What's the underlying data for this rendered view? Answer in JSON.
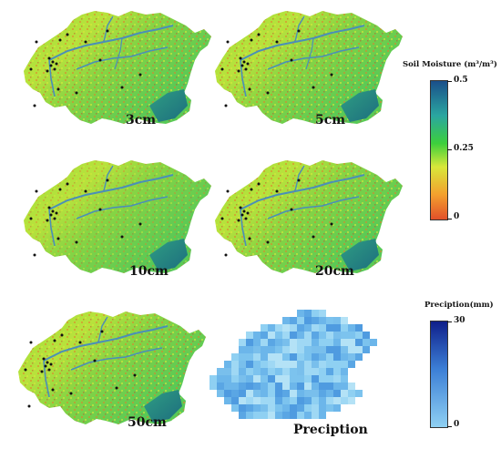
{
  "panels": [
    {
      "label": "3cm"
    },
    {
      "label": "5cm"
    },
    {
      "label": "10cm"
    },
    {
      "label": "20cm"
    },
    {
      "label": "50cm"
    }
  ],
  "precip_panel": {
    "label": "Preciption"
  },
  "soil_legend": {
    "title": "Soil Moisture (m³/m³)",
    "ticks": [
      "0.5",
      "0.25",
      "0"
    ],
    "colors": [
      "#1a4f8a",
      "#2aa6a0",
      "#3ccf3c",
      "#d8e83a",
      "#f3a02e",
      "#e2502a"
    ]
  },
  "precip_legend": {
    "title": "Preciption(mm)",
    "ticks": [
      "30",
      "0"
    ],
    "colors": [
      "#0f1f8a",
      "#3c7fd6",
      "#8fd0f2"
    ]
  }
}
